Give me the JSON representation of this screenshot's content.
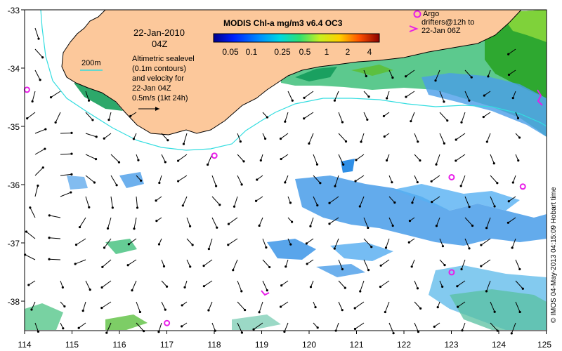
{
  "map": {
    "date": "22-Jan-2010",
    "time": "04Z",
    "colorbar_title": "MODIS Chl-a mg/m3 v6.4 OC3",
    "colorbar_ticks": [
      "0.05",
      "0.1",
      "0.25",
      "0.5",
      "1",
      "2",
      "4"
    ],
    "contour_label": "200m",
    "description_lines": [
      "Altimetric sealevel",
      "(0.1m contours)",
      "and velocity for",
      "22-Jan 04Z",
      "0.5m/s (1kt 24h)"
    ],
    "argo_legend_lines": [
      "Argo",
      "drifters@12h to",
      "22-Jan 06Z"
    ],
    "credit": "© IMOS 04-May-2013 04:15:09 Hobart time",
    "lon_ticks": [
      "114",
      "115",
      "116",
      "117",
      "118",
      "119",
      "120",
      "121",
      "122",
      "123",
      "124",
      "125"
    ],
    "lat_ticks": [
      "-33",
      "-34",
      "-35",
      "-36",
      "-37",
      "-38"
    ],
    "lon_range": [
      114,
      125
    ],
    "lat_range": [
      -38.5,
      -33
    ],
    "argo_floats": [
      {
        "lon": 114.05,
        "lat": -34.37
      },
      {
        "lon": 118.0,
        "lat": -35.5
      },
      {
        "lon": 123.0,
        "lat": -35.87
      },
      {
        "lon": 124.5,
        "lat": -36.03
      },
      {
        "lon": 123.0,
        "lat": -37.5
      },
      {
        "lon": 117.0,
        "lat": -38.37
      }
    ],
    "colors": {
      "land": "#fcc89b",
      "contour": "#33dde0",
      "argo": "#e81ee8",
      "arrows": "#000000"
    }
  }
}
